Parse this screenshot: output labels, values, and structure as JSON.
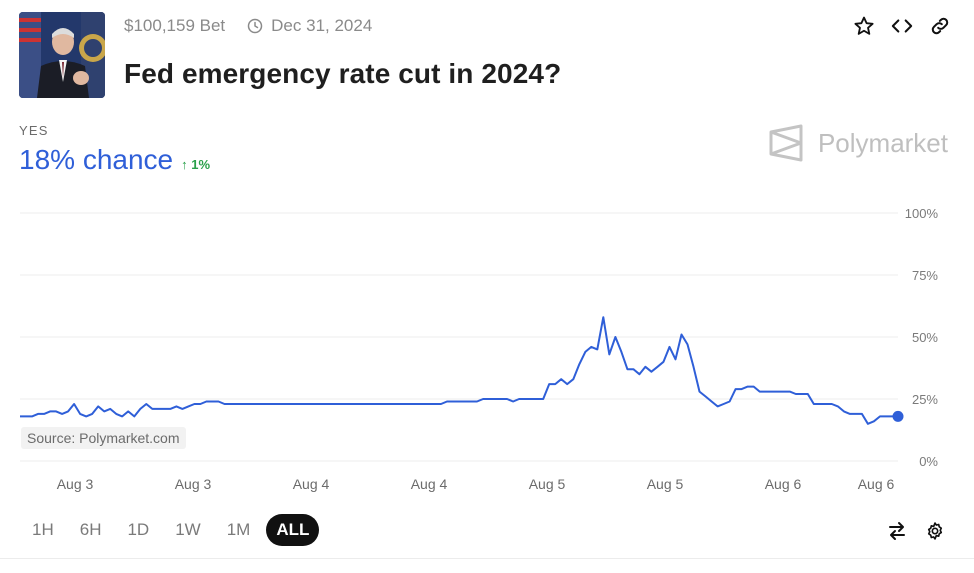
{
  "market": {
    "volume": "$100,159 Bet",
    "end_date": "Dec 31, 2024",
    "title": "Fed emergency rate cut in 2024?"
  },
  "header_icons": [
    "star-icon",
    "embed-code-icon",
    "link-icon"
  ],
  "outcome": {
    "label": "YES",
    "chance": "18% chance",
    "change": "↑ 1%"
  },
  "brand": {
    "name": "Polymarket"
  },
  "source": "Source: Polymarket.com",
  "colors": {
    "line": "#2f5fd8",
    "up": "#2aa04a",
    "active_range_bg": "#111111"
  },
  "chart_data": {
    "type": "line",
    "y_ticks": [
      "100%",
      "75%",
      "50%",
      "25%",
      "0%"
    ],
    "ylim": [
      0,
      100
    ],
    "x_ticks": [
      "Aug 3",
      "Aug 3",
      "Aug 4",
      "Aug 4",
      "Aug 5",
      "Aug 5",
      "Aug 6",
      "Aug 6"
    ],
    "grid": true,
    "series": [
      {
        "values": [
          18,
          18,
          18,
          19,
          19,
          20,
          20,
          19,
          20,
          23,
          19,
          18,
          19,
          22,
          20,
          21,
          19,
          18,
          20,
          18,
          21,
          23,
          21,
          21,
          21,
          21,
          22,
          21,
          22,
          23,
          23,
          24,
          24,
          24,
          23,
          23,
          23,
          23,
          23,
          23,
          23,
          23,
          23,
          23,
          23,
          23,
          23,
          23,
          23,
          23,
          23,
          23,
          23,
          23,
          23,
          23,
          23,
          23,
          23,
          23,
          23,
          23,
          23,
          23,
          23,
          23,
          23,
          23,
          23,
          23,
          23,
          24,
          24,
          24,
          24,
          24,
          24,
          25,
          25,
          25,
          25,
          25,
          24,
          25,
          25,
          25,
          25,
          25,
          31,
          31,
          33,
          31,
          33,
          39,
          44,
          46,
          45,
          58,
          43,
          50,
          44,
          37,
          37,
          35,
          38,
          36,
          38,
          40,
          46,
          41,
          51,
          47,
          38,
          28,
          26,
          24,
          22,
          23,
          24,
          29,
          29,
          30,
          30,
          28,
          28,
          28,
          28,
          28,
          28,
          27,
          27,
          27,
          23,
          23,
          23,
          23,
          22,
          20,
          19,
          19,
          19,
          15,
          16,
          18,
          18,
          18,
          18
        ]
      }
    ]
  },
  "ranges": [
    "1H",
    "6H",
    "1D",
    "1W",
    "1M",
    "ALL"
  ],
  "active_range": "ALL",
  "tool_icons": [
    "swap-arrows-icon",
    "settings-gear-icon"
  ]
}
